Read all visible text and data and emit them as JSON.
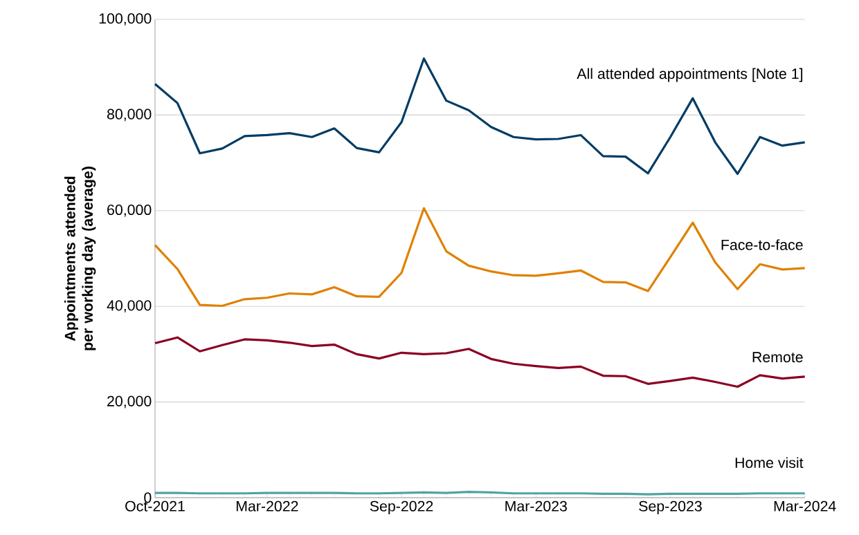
{
  "chart_data": {
    "type": "line",
    "ylabel": "**Appointments attended per working day (average)**",
    "categories": [
      "Oct-2021",
      null,
      null,
      null,
      null,
      "Mar-2022",
      null,
      null,
      null,
      null,
      null,
      "Sep-2022",
      null,
      null,
      null,
      null,
      null,
      "Mar-2023",
      null,
      null,
      null,
      null,
      null,
      "Sep-2023",
      null,
      null,
      null,
      null,
      null,
      "Mar-2024"
    ],
    "series": [
      {
        "name": "All attended appointments [Note 1]",
        "color": "#003c64",
        "values": [
          86500,
          82500,
          72000,
          73000,
          75600,
          75800,
          76200,
          75400,
          77200,
          73100,
          72200,
          78500,
          91800,
          83000,
          81000,
          77500,
          75400,
          74900,
          75000,
          75800,
          71400,
          71300,
          67800,
          75400,
          83500,
          74300,
          67700,
          75400,
          73600,
          74300
        ]
      },
      {
        "name": "Face-to-face",
        "color": "#e08000",
        "values": [
          52800,
          47800,
          40300,
          40100,
          41500,
          41800,
          42700,
          42500,
          44000,
          42100,
          42000,
          47000,
          60500,
          51500,
          48500,
          47300,
          46500,
          46400,
          46900,
          47500,
          45100,
          45000,
          43200,
          50300,
          57500,
          49200,
          43600,
          48800,
          47700,
          48000
        ]
      },
      {
        "name": "Remote",
        "color": "#8b0021",
        "values": [
          32300,
          33500,
          30600,
          31900,
          33100,
          32900,
          32400,
          31700,
          32000,
          30000,
          29100,
          30300,
          30000,
          30200,
          31100,
          29000,
          28000,
          27500,
          27100,
          27400,
          25500,
          25400,
          23800,
          24400,
          25100,
          24200,
          23200,
          25600,
          24900,
          25300
        ]
      },
      {
        "name": "Home visit",
        "color": "#4fa3a3",
        "values": [
          1000,
          1000,
          900,
          900,
          900,
          1000,
          1000,
          1000,
          1000,
          900,
          900,
          1000,
          1100,
          1000,
          1200,
          1100,
          900,
          900,
          900,
          900,
          800,
          800,
          700,
          800,
          800,
          800,
          800,
          900,
          900,
          900
        ]
      }
    ],
    "ylim": [
      0,
      100000
    ],
    "yticks": [
      {
        "value": 0,
        "label": "0"
      },
      {
        "value": 20000,
        "label": "20,000"
      },
      {
        "value": 40000,
        "label": "40,000"
      },
      {
        "value": 60000,
        "label": "60,000"
      },
      {
        "value": 80000,
        "label": "80,000"
      },
      {
        "value": 100000,
        "label": "100,000"
      }
    ],
    "grid": "y",
    "marker": "none",
    "line_style": "solid"
  }
}
